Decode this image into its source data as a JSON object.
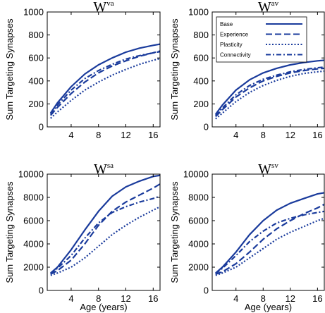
{
  "figure": {
    "color": "#1a3b9c"
  },
  "chart_data": [
    {
      "type": "line",
      "title": "W",
      "title_superscript": "va",
      "xlabel": "",
      "ylabel": "Sum Targeting Synapses",
      "xlim": [
        0.5,
        17
      ],
      "ylim": [
        0,
        1000
      ],
      "xticks": [
        4,
        8,
        12,
        16
      ],
      "yticks": [
        0,
        200,
        400,
        600,
        800,
        1000
      ],
      "grid": false,
      "legend": null,
      "x": [
        1,
        2,
        4,
        6,
        8,
        10,
        12,
        14,
        16,
        17
      ],
      "series": [
        {
          "name": "Base",
          "style": "solid",
          "values": [
            120,
            210,
            350,
            460,
            540,
            600,
            650,
            685,
            710,
            720
          ]
        },
        {
          "name": "Experience",
          "style": "dashed",
          "values": [
            100,
            170,
            290,
            390,
            470,
            530,
            575,
            615,
            645,
            660
          ]
        },
        {
          "name": "Plasticity",
          "style": "dotted",
          "values": [
            75,
            130,
            230,
            320,
            390,
            450,
            500,
            545,
            580,
            595
          ]
        },
        {
          "name": "Connectivity",
          "style": "dashdot",
          "values": [
            110,
            190,
            320,
            420,
            490,
            545,
            590,
            620,
            645,
            655
          ]
        }
      ]
    },
    {
      "type": "line",
      "title": "W",
      "title_superscript": "av",
      "xlabel": "",
      "ylabel": "Sum Targeting Synapses",
      "xlim": [
        0.5,
        17
      ],
      "ylim": [
        0,
        1000
      ],
      "xticks": [
        4,
        8,
        12,
        16
      ],
      "yticks": [
        0,
        200,
        400,
        600,
        800,
        1000
      ],
      "grid": false,
      "legend": "top-right",
      "x": [
        1,
        2,
        4,
        6,
        8,
        10,
        12,
        14,
        16,
        17
      ],
      "series": [
        {
          "name": "Base",
          "style": "solid",
          "values": [
            110,
            190,
            320,
            410,
            470,
            510,
            540,
            560,
            575,
            580
          ]
        },
        {
          "name": "Experience",
          "style": "dashed",
          "values": [
            90,
            150,
            260,
            340,
            400,
            440,
            470,
            490,
            505,
            510
          ]
        },
        {
          "name": "Plasticity",
          "style": "dotted",
          "values": [
            70,
            120,
            220,
            300,
            360,
            405,
            440,
            465,
            480,
            485
          ]
        },
        {
          "name": "Connectivity",
          "style": "dashdot",
          "values": [
            100,
            165,
            280,
            360,
            415,
            450,
            480,
            500,
            515,
            520
          ]
        }
      ]
    },
    {
      "type": "line",
      "title": "W",
      "title_superscript": "sa",
      "xlabel": "Age (years)",
      "ylabel": "Sum Targeting Synapses",
      "xlim": [
        0.5,
        17
      ],
      "ylim": [
        0,
        10000
      ],
      "xticks": [
        4,
        8,
        12,
        16
      ],
      "yticks": [
        0,
        2000,
        4000,
        6000,
        8000,
        10000
      ],
      "grid": false,
      "legend": null,
      "x": [
        1,
        2,
        4,
        6,
        8,
        10,
        12,
        14,
        16,
        17
      ],
      "series": [
        {
          "name": "Base",
          "style": "solid",
          "values": [
            1500,
            2000,
            3500,
            5200,
            6800,
            8100,
            8900,
            9400,
            9800,
            9900
          ]
        },
        {
          "name": "Experience",
          "style": "dashed",
          "values": [
            1400,
            1700,
            2600,
            4000,
            5600,
            6800,
            7600,
            8200,
            8800,
            9150
          ]
        },
        {
          "name": "Plasticity",
          "style": "dotted",
          "values": [
            1300,
            1500,
            2000,
            2800,
            3800,
            4800,
            5600,
            6300,
            6900,
            7200
          ]
        },
        {
          "name": "Connectivity",
          "style": "dashdot",
          "values": [
            1450,
            1900,
            3000,
            4500,
            5800,
            6700,
            7200,
            7600,
            7900,
            8100
          ]
        }
      ]
    },
    {
      "type": "line",
      "title": "W",
      "title_superscript": "sv",
      "xlabel": "Age (years)",
      "ylabel": "Sum Targeting Synapses",
      "xlim": [
        0.5,
        17
      ],
      "ylim": [
        0,
        10000
      ],
      "xticks": [
        4,
        8,
        12,
        16
      ],
      "yticks": [
        0,
        2000,
        4000,
        6000,
        8000,
        10000
      ],
      "grid": false,
      "legend": null,
      "x": [
        1,
        2,
        4,
        6,
        8,
        10,
        12,
        14,
        16,
        17
      ],
      "series": [
        {
          "name": "Base",
          "style": "solid",
          "values": [
            1500,
            2000,
            3300,
            4800,
            6000,
            6900,
            7500,
            7900,
            8300,
            8400
          ]
        },
        {
          "name": "Experience",
          "style": "dashed",
          "values": [
            1400,
            1600,
            2300,
            3300,
            4400,
            5300,
            6000,
            6600,
            7100,
            7400
          ]
        },
        {
          "name": "Plasticity",
          "style": "dotted",
          "values": [
            1300,
            1500,
            2000,
            2800,
            3600,
            4400,
            5000,
            5500,
            6000,
            6200
          ]
        },
        {
          "name": "Connectivity",
          "style": "dashdot",
          "values": [
            1450,
            1900,
            3000,
            4200,
            5100,
            5800,
            6200,
            6500,
            6700,
            6800
          ]
        }
      ]
    }
  ]
}
